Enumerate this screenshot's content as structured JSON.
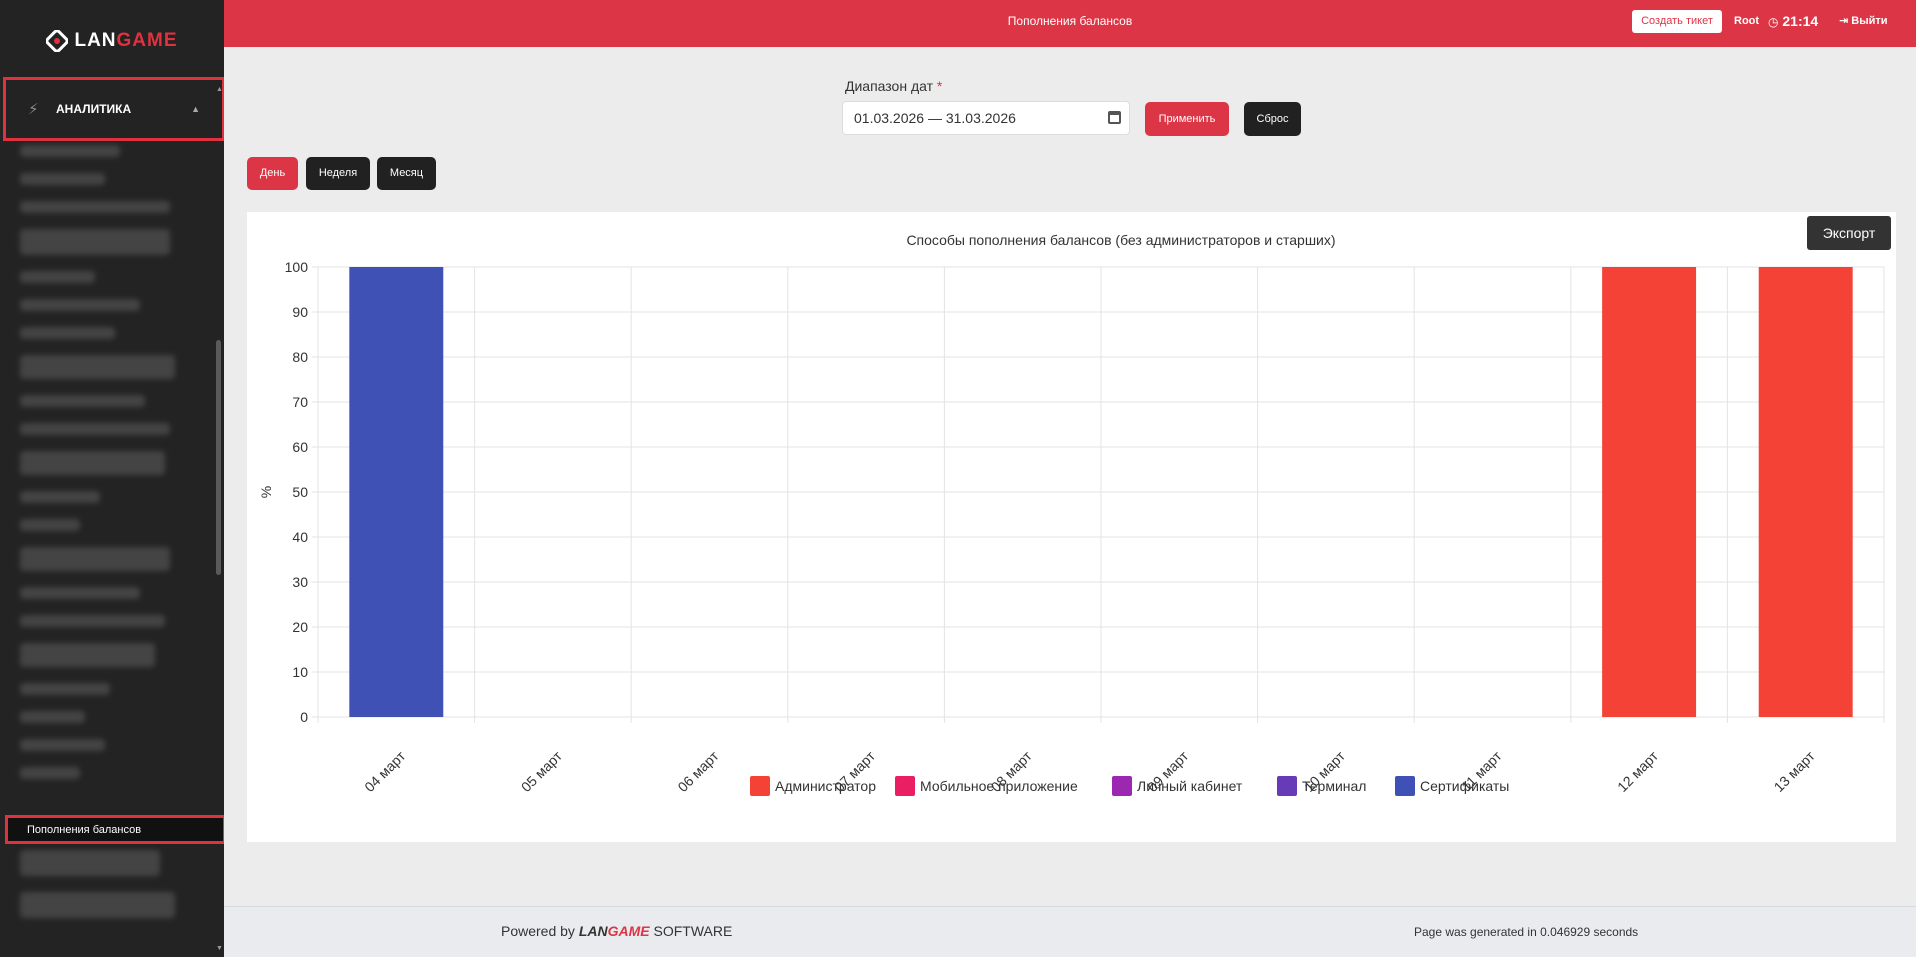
{
  "app": {
    "logo_prefix": "LAN",
    "logo_suffix": "GAME"
  },
  "sidebar": {
    "section_label": "АНАЛИТИКА",
    "active_item": "Пополнения балансов"
  },
  "header": {
    "title": "Пополнения балансов",
    "ticket_button": "Создать тикет",
    "user": "Root",
    "time": "21:14",
    "logout": "Выйти"
  },
  "filters": {
    "date_label": "Диапазон дат",
    "date_required_mark": "*",
    "date_value": "01.03.2026 — 31.03.2026",
    "apply_label": "Применить",
    "reset_label": "Сброс",
    "periods": [
      "День",
      "Неделя",
      "Месяц"
    ],
    "active_period": "День"
  },
  "export_label": "Экспорт",
  "chart_data": {
    "type": "bar",
    "stacked": true,
    "title": "Способы пополнения балансов (без администраторов и старших)",
    "xlabel": "",
    "ylabel": "%",
    "ylim": [
      0,
      100
    ],
    "yticks": [
      0,
      10,
      20,
      30,
      40,
      50,
      60,
      70,
      80,
      90,
      100
    ],
    "categories": [
      "04 март",
      "05 март",
      "06 март",
      "07 март",
      "08 март",
      "09 март",
      "10 март",
      "11 март",
      "12 март",
      "13 март"
    ],
    "series": [
      {
        "name": "Администратор",
        "color": "#f44336",
        "values": [
          0,
          0,
          0,
          0,
          0,
          0,
          0,
          0,
          100,
          100
        ]
      },
      {
        "name": "Мобильное приложение",
        "color": "#e91e63",
        "values": [
          0,
          0,
          0,
          0,
          0,
          0,
          0,
          0,
          0,
          0
        ]
      },
      {
        "name": "Личный кабинет",
        "color": "#9c27b0",
        "values": [
          0,
          0,
          0,
          0,
          0,
          0,
          0,
          0,
          0,
          0
        ]
      },
      {
        "name": "Терминал",
        "color": "#673ab7",
        "values": [
          0,
          0,
          0,
          0,
          0,
          0,
          0,
          0,
          0,
          0
        ]
      },
      {
        "name": "Сертификаты",
        "color": "#3f51b5",
        "values": [
          100,
          0,
          0,
          0,
          0,
          0,
          0,
          0,
          0,
          0
        ]
      }
    ],
    "grid": true,
    "legend_position": "bottom"
  },
  "footer": {
    "powered_prefix": "Powered by",
    "brand_a": "LAN",
    "brand_b": "GAME",
    "software": "SOFTWARE",
    "generated": "Page was generated in 0.046929 seconds"
  }
}
